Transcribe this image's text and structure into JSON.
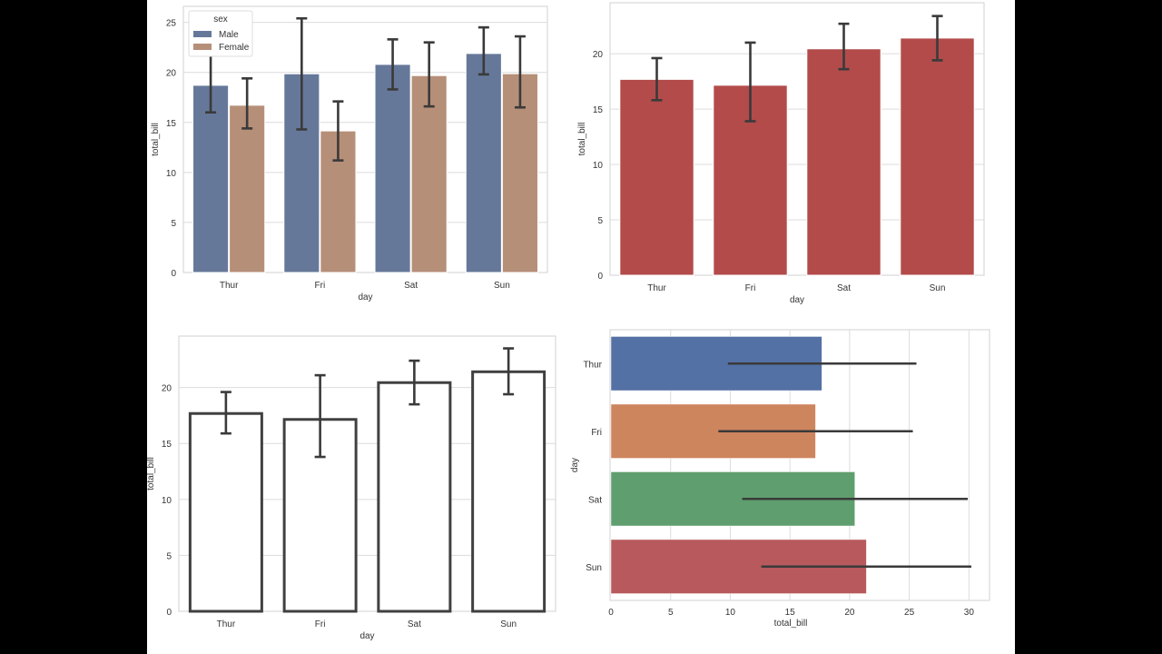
{
  "chart_data": [
    {
      "type": "bar",
      "orientation": "vertical",
      "xlabel": "day",
      "ylabel": "total_bill",
      "categories": [
        "Thur",
        "Fri",
        "Sat",
        "Sun"
      ],
      "ylim": [
        0,
        26.6
      ],
      "yticks": [
        0,
        5,
        10,
        15,
        20,
        25
      ],
      "grid": true,
      "legend": {
        "title": "sex",
        "placement": "top-left"
      },
      "series": [
        {
          "name": "Male",
          "color": "#66789a",
          "values": [
            18.71,
            19.86,
            20.8,
            21.89
          ],
          "ci_low": [
            16.0,
            14.3,
            18.3,
            19.8
          ],
          "ci_high": [
            21.7,
            25.4,
            23.3,
            24.5
          ]
        },
        {
          "name": "Female",
          "color": "#b68f78",
          "values": [
            16.72,
            14.15,
            19.68,
            19.87
          ],
          "ci_low": [
            14.4,
            11.2,
            16.6,
            16.5
          ],
          "ci_high": [
            19.4,
            17.1,
            23.0,
            23.6
          ]
        }
      ]
    },
    {
      "type": "bar",
      "orientation": "vertical",
      "xlabel": "day",
      "ylabel": "total_bill",
      "categories": [
        "Thur",
        "Fri",
        "Sat",
        "Sun"
      ],
      "ylim": [
        0,
        24.6
      ],
      "yticks": [
        0,
        5,
        10,
        15,
        20
      ],
      "grid": true,
      "series": [
        {
          "color": "#b34b4b",
          "values": [
            17.68,
            17.15,
            20.44,
            21.41
          ],
          "ci_low": [
            15.8,
            13.9,
            18.6,
            19.4
          ],
          "ci_high": [
            19.6,
            21.0,
            22.7,
            23.4
          ]
        }
      ]
    },
    {
      "type": "bar",
      "orientation": "vertical",
      "style": "outline",
      "xlabel": "day",
      "ylabel": "total_bill",
      "categories": [
        "Thur",
        "Fri",
        "Sat",
        "Sun"
      ],
      "ylim": [
        0,
        24.6
      ],
      "yticks": [
        0,
        5,
        10,
        15,
        20
      ],
      "grid": true,
      "series": [
        {
          "color": "#ffffff",
          "edgecolor": "#404040",
          "values": [
            17.68,
            17.15,
            20.44,
            21.41
          ],
          "ci_low": [
            15.9,
            13.8,
            18.5,
            19.4
          ],
          "ci_high": [
            19.6,
            21.1,
            22.4,
            23.5
          ]
        }
      ]
    },
    {
      "type": "bar",
      "orientation": "horizontal",
      "xlabel": "total_bill",
      "ylabel": "day",
      "categories": [
        "Thur",
        "Fri",
        "Sat",
        "Sun"
      ],
      "xlim": [
        0,
        31.8
      ],
      "xticks": [
        0,
        5,
        10,
        15,
        20,
        25,
        30
      ],
      "grid": true,
      "series": [
        {
          "colors": [
            "#5471a5",
            "#cd855e",
            "#5f9e6e",
            "#b85a5d"
          ],
          "values": [
            17.68,
            17.15,
            20.44,
            21.41
          ],
          "ci_low": [
            9.8,
            9.0,
            11.0,
            12.6
          ],
          "ci_high": [
            25.6,
            25.3,
            29.9,
            30.2
          ]
        }
      ]
    }
  ]
}
